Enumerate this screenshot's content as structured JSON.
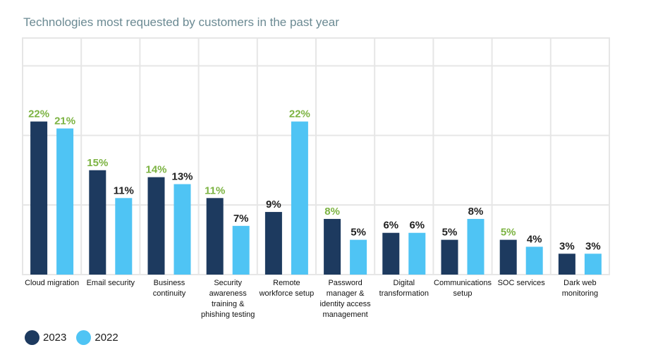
{
  "chart_data": {
    "type": "bar",
    "title": "Technologies most requested by customers in the past year",
    "categories": [
      "Cloud migration",
      "Email security",
      "Business continuity",
      "Security awareness training & phishing testing",
      "Remote workforce setup",
      "Password manager & identity access management",
      "Digital transformation",
      "Communications setup",
      "SOC services",
      "Dark web monitoring"
    ],
    "category_lines": [
      [
        "Cloud migration"
      ],
      [
        "Email security"
      ],
      [
        "Business",
        "continuity"
      ],
      [
        "Security",
        "awareness",
        "training &",
        "phishing testing"
      ],
      [
        "Remote",
        "workforce setup"
      ],
      [
        "Password",
        "manager &",
        "identity access",
        "management"
      ],
      [
        "Digital",
        "transformation"
      ],
      [
        "Communications",
        "setup"
      ],
      [
        "SOC services"
      ],
      [
        "Dark web",
        "monitoring"
      ]
    ],
    "series": [
      {
        "name": "2023",
        "color": "#1d3a5f",
        "values": [
          22,
          15,
          14,
          11,
          9,
          8,
          6,
          5,
          5,
          3
        ]
      },
      {
        "name": "2022",
        "color": "#4fc4f4",
        "values": [
          21,
          11,
          13,
          7,
          22,
          5,
          6,
          8,
          4,
          3
        ]
      }
    ],
    "data_labels": [
      [
        "22%",
        "15%",
        "14%",
        "11%",
        "9%",
        "8%",
        "6%",
        "5%",
        "5%",
        "3%"
      ],
      [
        "21%",
        "11%",
        "13%",
        "7%",
        "22%",
        "5%",
        "6%",
        "8%",
        "4%",
        "3%"
      ]
    ],
    "highlight_color": "#7cb342",
    "label_color": "#222222",
    "highlighted": [
      [
        true,
        true,
        true,
        true,
        false,
        true,
        false,
        false,
        true,
        false
      ],
      [
        true,
        false,
        false,
        false,
        true,
        false,
        false,
        false,
        false,
        false
      ]
    ],
    "ylim": [
      0,
      34
    ],
    "grid_values": [
      0,
      10,
      20,
      30
    ],
    "xlabel": "",
    "ylabel": "",
    "legend": "bottom-left"
  }
}
